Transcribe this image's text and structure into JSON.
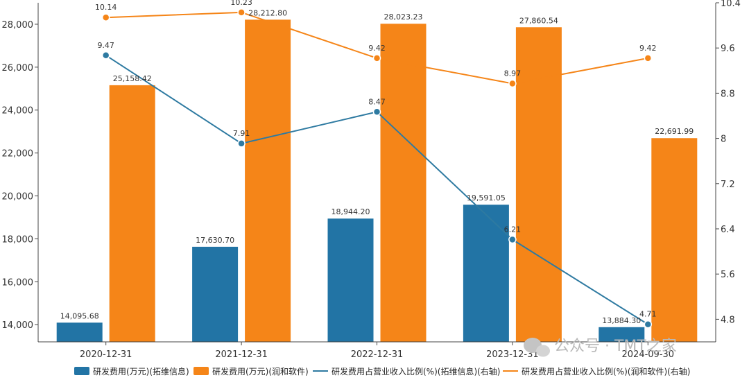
{
  "chart_data": {
    "type": "bar+line",
    "categories": [
      "2020-12-31",
      "2021-12-31",
      "2022-12-31",
      "2023-12-31",
      "2024-09-30"
    ],
    "bar_series": [
      {
        "name": "研发费用(万元)(拓维信息)",
        "color": "#2274a5",
        "values": [
          14095.68,
          17630.7,
          18944.2,
          19591.05,
          13884.3
        ],
        "labels": [
          "14,095.68",
          "17,630.70",
          "18,944.20",
          "19,591.05",
          "13,884.30"
        ]
      },
      {
        "name": "研发费用(万元)(润和软件)",
        "color": "#f58518",
        "values": [
          25158.42,
          28212.8,
          28023.23,
          27860.54,
          22691.99
        ],
        "labels": [
          "25,158.42",
          "28,212.80",
          "28,023.23",
          "27,860.54",
          "22,691.99"
        ]
      }
    ],
    "line_series": [
      {
        "name": "研发费用占营业收入比例(%)(拓维信息)(右轴)",
        "color": "#2e7aa1",
        "values": [
          9.47,
          7.91,
          8.47,
          6.21,
          4.71
        ],
        "labels": [
          "9.47",
          "7.91",
          "8.47",
          "6.21",
          "4.71"
        ]
      },
      {
        "name": "研发费用占营业收入比例(%)(润和软件)(右轴)",
        "color": "#f58518",
        "values": [
          10.14,
          10.23,
          9.42,
          8.97,
          9.42
        ],
        "labels": [
          "10.14",
          "10.23",
          "9.42",
          "8.97",
          "9.42"
        ]
      }
    ],
    "y_left": {
      "min": 13200,
      "max": 29000,
      "ticks": [
        14000,
        16000,
        18000,
        20000,
        22000,
        24000,
        26000,
        28000
      ],
      "tick_labels": [
        "14,000",
        "16,000",
        "18,000",
        "20,000",
        "22,000",
        "24,000",
        "26,000",
        "28,000"
      ]
    },
    "y_right": {
      "min": 4.4,
      "max": 10.4,
      "ticks": [
        4.8,
        5.6,
        6.4,
        7.2,
        8,
        8.8,
        9.6,
        10.4
      ],
      "tick_labels": [
        "4.8",
        "5.6",
        "6.4",
        "7.2",
        "8",
        "8.8",
        "9.6",
        "10.4"
      ]
    },
    "legend_position": "bottom",
    "grid": false
  },
  "watermark": {
    "text": "公众号 · TMT之家"
  }
}
